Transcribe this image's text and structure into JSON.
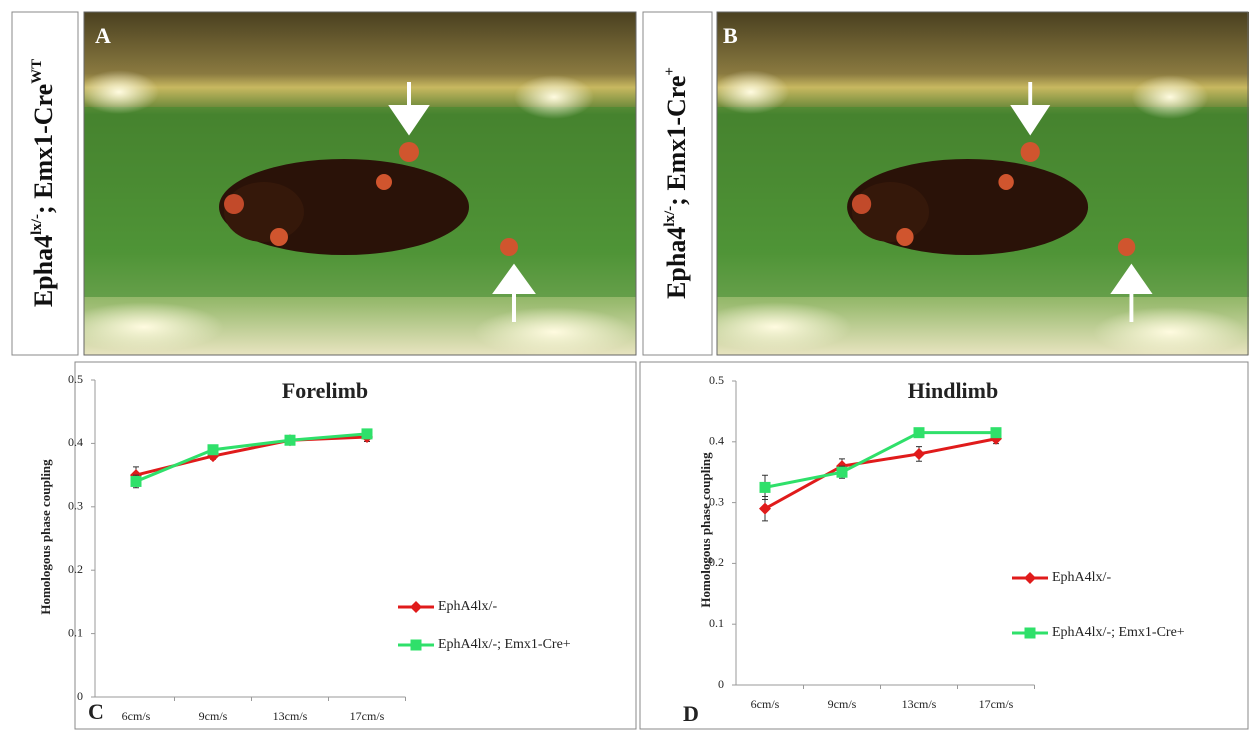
{
  "panels": [
    {
      "letter": "A",
      "label_parts": [
        "Epha4",
        "lx/-",
        "; Emx1-Cre",
        "WT"
      ]
    },
    {
      "letter": "B",
      "label_parts": [
        "Epha4",
        "lx/-",
        "; Emx1-Cre",
        "+"
      ]
    }
  ],
  "chart_data": [
    {
      "type": "line",
      "panel": "C",
      "title": "Forelimb",
      "y_label": "Homologous phase coupling",
      "categories": [
        "6cm/s",
        "9cm/s",
        "13cm/s",
        "17cm/s"
      ],
      "series": [
        {
          "name": "EphA4lx/-",
          "color": "#e01b1b",
          "marker": "diamond",
          "values": [
            0.35,
            0.38,
            0.405,
            0.41
          ],
          "errors": [
            0.013,
            0.005,
            0.003,
            0.007
          ]
        },
        {
          "name": "EphA4lx/-; Emx1-Cre+",
          "color": "#2fe06a",
          "marker": "square",
          "values": [
            0.34,
            0.39,
            0.405,
            0.415
          ],
          "errors": [
            0.01,
            0.005,
            0.003,
            0.005
          ]
        }
      ],
      "ylim": [
        0,
        0.5
      ],
      "yticks": [
        0,
        0.1,
        0.2,
        0.3,
        0.4,
        0.5
      ]
    },
    {
      "type": "line",
      "panel": "D",
      "title": "Hindlimb",
      "y_label": "Homologous phase coupling",
      "categories": [
        "6cm/s",
        "9cm/s",
        "13cm/s",
        "17cm/s"
      ],
      "series": [
        {
          "name": "EphA4lx/-",
          "color": "#e01b1b",
          "marker": "diamond",
          "values": [
            0.29,
            0.36,
            0.38,
            0.405
          ],
          "errors": [
            0.02,
            0.012,
            0.012,
            0.008
          ]
        },
        {
          "name": "EphA4lx/-; Emx1-Cre+",
          "color": "#2fe06a",
          "marker": "square",
          "values": [
            0.325,
            0.35,
            0.415,
            0.415
          ],
          "errors": [
            0.02,
            0.01,
            0.005,
            0.005
          ]
        }
      ],
      "ylim": [
        0,
        0.5
      ],
      "yticks": [
        0,
        0.1,
        0.2,
        0.3,
        0.4,
        0.5
      ]
    }
  ]
}
